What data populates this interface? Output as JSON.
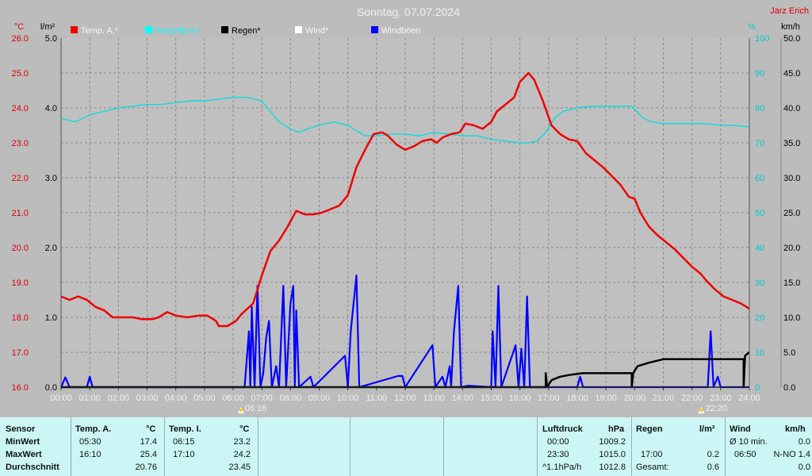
{
  "chart_data": {
    "type": "line",
    "title": "Sonntag, 07.07.2024",
    "corner_label": "Jarz Erich",
    "x_ticks": [
      "00:00",
      "01:00",
      "02:00",
      "03:00",
      "04:00",
      "05:00",
      "06:00",
      "07:00",
      "08:00",
      "09:00",
      "10:00",
      "11:00",
      "12:00",
      "13:00",
      "14:00",
      "15:00",
      "16:00",
      "17:00",
      "18:00",
      "19:00",
      "20:00",
      "21:00",
      "22:00",
      "23:00",
      "24:00"
    ],
    "axes": {
      "temp": {
        "unit": "°C",
        "range": [
          16.0,
          26.0
        ],
        "ticks": [
          "16.0",
          "17.0",
          "18.0",
          "19.0",
          "20.0",
          "21.0",
          "22.0",
          "23.0",
          "24.0",
          "25.0",
          "26.0"
        ],
        "color": "#dd0000"
      },
      "rain": {
        "unit": "l/m²",
        "range": [
          0.0,
          5.0
        ],
        "ticks": [
          "0.0",
          "1.0",
          "2.0",
          "3.0",
          "4.0",
          "5.0"
        ],
        "color": "#000000"
      },
      "humidity": {
        "unit": "%",
        "range": [
          0,
          100
        ],
        "ticks": [
          "0",
          "10",
          "20",
          "30",
          "40",
          "50",
          "60",
          "70",
          "80",
          "90",
          "100"
        ],
        "color": "#00cccc"
      },
      "wind": {
        "unit": "km/h",
        "range": [
          0.0,
          50.0
        ],
        "ticks": [
          "0.0",
          "5.0",
          "10.0",
          "15.0",
          "20.0",
          "25.0",
          "30.0",
          "35.0",
          "40.0",
          "45.0",
          "50.0"
        ],
        "color": "#000000"
      }
    },
    "legend": [
      {
        "name": "Temp. A.*",
        "color": "#ee0000"
      },
      {
        "name": "Feuchte A.*",
        "color": "#00ffff"
      },
      {
        "name": "Regen*",
        "color": "#000000"
      },
      {
        "name": "Wind*",
        "color": "#ffffff"
      },
      {
        "name": "Windböen",
        "color": "#0000ff"
      }
    ],
    "sun_markers": [
      {
        "label": "06:16",
        "x": 6.27
      },
      {
        "label": "22:20",
        "x": 22.33
      }
    ],
    "series": [
      {
        "name": "Temp. A.*",
        "axis": "temp",
        "color": "#ee0000",
        "points": [
          [
            0,
            18.6
          ],
          [
            0.3,
            18.5
          ],
          [
            0.6,
            18.6
          ],
          [
            0.9,
            18.5
          ],
          [
            1.2,
            18.3
          ],
          [
            1.5,
            18.2
          ],
          [
            1.8,
            18.0
          ],
          [
            2.2,
            18.0
          ],
          [
            2.5,
            18.0
          ],
          [
            2.8,
            17.95
          ],
          [
            3.2,
            17.95
          ],
          [
            3.4,
            18.0
          ],
          [
            3.7,
            18.15
          ],
          [
            4.0,
            18.05
          ],
          [
            4.4,
            18.0
          ],
          [
            4.8,
            18.05
          ],
          [
            5.1,
            18.05
          ],
          [
            5.4,
            17.9
          ],
          [
            5.5,
            17.75
          ],
          [
            5.8,
            17.75
          ],
          [
            6.1,
            17.9
          ],
          [
            6.3,
            18.1
          ],
          [
            6.7,
            18.4
          ],
          [
            7.0,
            19.2
          ],
          [
            7.3,
            19.9
          ],
          [
            7.6,
            20.2
          ],
          [
            7.9,
            20.6
          ],
          [
            8.2,
            21.05
          ],
          [
            8.5,
            20.95
          ],
          [
            8.8,
            20.95
          ],
          [
            9.1,
            21.0
          ],
          [
            9.4,
            21.1
          ],
          [
            9.7,
            21.2
          ],
          [
            10.0,
            21.5
          ],
          [
            10.3,
            22.3
          ],
          [
            10.6,
            22.8
          ],
          [
            10.9,
            23.25
          ],
          [
            11.2,
            23.3
          ],
          [
            11.4,
            23.2
          ],
          [
            11.7,
            22.95
          ],
          [
            12.0,
            22.8
          ],
          [
            12.3,
            22.9
          ],
          [
            12.6,
            23.05
          ],
          [
            12.9,
            23.1
          ],
          [
            13.1,
            23.0
          ],
          [
            13.3,
            23.15
          ],
          [
            13.6,
            23.25
          ],
          [
            13.9,
            23.3
          ],
          [
            14.1,
            23.55
          ],
          [
            14.4,
            23.5
          ],
          [
            14.7,
            23.4
          ],
          [
            15.0,
            23.6
          ],
          [
            15.2,
            23.9
          ],
          [
            15.5,
            24.1
          ],
          [
            15.8,
            24.3
          ],
          [
            16.0,
            24.75
          ],
          [
            16.3,
            25.0
          ],
          [
            16.5,
            24.8
          ],
          [
            16.8,
            24.2
          ],
          [
            17.1,
            23.5
          ],
          [
            17.4,
            23.25
          ],
          [
            17.7,
            23.1
          ],
          [
            18.0,
            23.05
          ],
          [
            18.3,
            22.7
          ],
          [
            18.6,
            22.5
          ],
          [
            18.9,
            22.3
          ],
          [
            19.2,
            22.05
          ],
          [
            19.5,
            21.8
          ],
          [
            19.8,
            21.45
          ],
          [
            20.0,
            21.4
          ],
          [
            20.2,
            21.0
          ],
          [
            20.5,
            20.6
          ],
          [
            20.8,
            20.35
          ],
          [
            21.1,
            20.15
          ],
          [
            21.4,
            19.95
          ],
          [
            21.7,
            19.7
          ],
          [
            22.0,
            19.45
          ],
          [
            22.3,
            19.25
          ],
          [
            22.5,
            19.05
          ],
          [
            22.8,
            18.8
          ],
          [
            23.1,
            18.6
          ],
          [
            23.4,
            18.5
          ],
          [
            23.7,
            18.4
          ],
          [
            24.0,
            18.25
          ]
        ]
      },
      {
        "name": "Feuchte A.*",
        "axis": "humidity",
        "color": "#00dddd",
        "points": [
          [
            0,
            77
          ],
          [
            0.5,
            76
          ],
          [
            1.0,
            78
          ],
          [
            1.5,
            79
          ],
          [
            2.0,
            80
          ],
          [
            2.5,
            80.5
          ],
          [
            3.0,
            81
          ],
          [
            3.5,
            81
          ],
          [
            4.0,
            81.5
          ],
          [
            4.5,
            82
          ],
          [
            5.0,
            82
          ],
          [
            5.5,
            82.5
          ],
          [
            6.0,
            83
          ],
          [
            6.5,
            83
          ],
          [
            7.0,
            82
          ],
          [
            7.3,
            79
          ],
          [
            7.6,
            76
          ],
          [
            8.0,
            74
          ],
          [
            8.3,
            73
          ],
          [
            8.6,
            74
          ],
          [
            9.0,
            75
          ],
          [
            9.5,
            76
          ],
          [
            10.0,
            75
          ],
          [
            10.3,
            73.5
          ],
          [
            10.6,
            72
          ],
          [
            11.0,
            72
          ],
          [
            11.5,
            72.5
          ],
          [
            12.0,
            72.5
          ],
          [
            12.5,
            72
          ],
          [
            13.0,
            73
          ],
          [
            13.5,
            72.5
          ],
          [
            14.0,
            72
          ],
          [
            14.5,
            72
          ],
          [
            15.0,
            71
          ],
          [
            15.5,
            70.5
          ],
          [
            16.0,
            70
          ],
          [
            16.3,
            70
          ],
          [
            16.6,
            70.5
          ],
          [
            16.9,
            73
          ],
          [
            17.2,
            77
          ],
          [
            17.5,
            79
          ],
          [
            18.0,
            80
          ],
          [
            18.5,
            80.5
          ],
          [
            19.0,
            80.5
          ],
          [
            19.5,
            80.5
          ],
          [
            19.9,
            80.5
          ],
          [
            20.3,
            77
          ],
          [
            20.6,
            76
          ],
          [
            21.0,
            75.5
          ],
          [
            21.5,
            75.5
          ],
          [
            22.0,
            75.5
          ],
          [
            22.5,
            75.5
          ],
          [
            23.0,
            75
          ],
          [
            23.5,
            75
          ],
          [
            24.0,
            74.5
          ]
        ]
      },
      {
        "name": "Regen*",
        "axis": "rain",
        "color": "#000000",
        "points": [
          [
            0,
            0
          ],
          [
            16.9,
            0
          ],
          [
            16.9,
            0.2
          ],
          [
            16.95,
            0
          ],
          [
            17.1,
            0.1
          ],
          [
            17.4,
            0.15
          ],
          [
            17.8,
            0.18
          ],
          [
            18.2,
            0.2
          ],
          [
            18.8,
            0.2
          ],
          [
            19.5,
            0.2
          ],
          [
            19.9,
            0.2
          ],
          [
            19.9,
            0
          ],
          [
            19.95,
            0.2
          ],
          [
            20.1,
            0.3
          ],
          [
            20.5,
            0.35
          ],
          [
            21.0,
            0.4
          ],
          [
            22.0,
            0.4
          ],
          [
            23.0,
            0.4
          ],
          [
            23.5,
            0.4
          ],
          [
            23.8,
            0.4
          ],
          [
            23.8,
            0
          ],
          [
            23.85,
            0.45
          ],
          [
            24.0,
            0.5
          ]
        ]
      },
      {
        "name": "Windböen",
        "axis": "wind",
        "color": "#0000ff",
        "points": [
          [
            0,
            0
          ],
          [
            0.15,
            1.4
          ],
          [
            0.3,
            0
          ],
          [
            0.9,
            0
          ],
          [
            1.0,
            1.5
          ],
          [
            1.1,
            0
          ],
          [
            6.4,
            0
          ],
          [
            6.55,
            8
          ],
          [
            6.6,
            0
          ],
          [
            6.65,
            11.5
          ],
          [
            6.75,
            0
          ],
          [
            6.85,
            14.5
          ],
          [
            6.95,
            0
          ],
          [
            7.05,
            2
          ],
          [
            7.15,
            7
          ],
          [
            7.25,
            9.5
          ],
          [
            7.35,
            0
          ],
          [
            7.5,
            3
          ],
          [
            7.6,
            0
          ],
          [
            7.75,
            14.5
          ],
          [
            7.85,
            0
          ],
          [
            8.0,
            12
          ],
          [
            8.1,
            14.5
          ],
          [
            8.15,
            0
          ],
          [
            8.2,
            11
          ],
          [
            8.3,
            0
          ],
          [
            8.7,
            1.5
          ],
          [
            8.8,
            0
          ],
          [
            9.9,
            4.5
          ],
          [
            10.0,
            0
          ],
          [
            10.1,
            8
          ],
          [
            10.3,
            16
          ],
          [
            10.4,
            0
          ],
          [
            11.75,
            1.6
          ],
          [
            11.9,
            1.6
          ],
          [
            12.0,
            0
          ],
          [
            12.95,
            6
          ],
          [
            13.05,
            0
          ],
          [
            13.3,
            1.5
          ],
          [
            13.4,
            0
          ],
          [
            13.55,
            3
          ],
          [
            13.6,
            0
          ],
          [
            13.7,
            8
          ],
          [
            13.85,
            14.5
          ],
          [
            13.95,
            0
          ],
          [
            14.2,
            0.2
          ],
          [
            15.0,
            0
          ],
          [
            15.05,
            8
          ],
          [
            15.15,
            0
          ],
          [
            15.25,
            14.5
          ],
          [
            15.35,
            0
          ],
          [
            15.85,
            6
          ],
          [
            15.95,
            0
          ],
          [
            16.05,
            5.5
          ],
          [
            16.15,
            0
          ],
          [
            16.25,
            13
          ],
          [
            16.35,
            0
          ],
          [
            18.0,
            0
          ],
          [
            18.1,
            1.5
          ],
          [
            18.2,
            0
          ],
          [
            22.55,
            0
          ],
          [
            22.65,
            8
          ],
          [
            22.75,
            0
          ],
          [
            22.9,
            1.5
          ],
          [
            23.0,
            0
          ],
          [
            24.0,
            0
          ]
        ]
      }
    ]
  },
  "table": {
    "sensor": {
      "header": "Sensor",
      "rows": [
        "MinWert",
        "MaxWert",
        "Durchschnitt"
      ]
    },
    "temp_a": {
      "header": "Temp. A.",
      "unit": "°C",
      "time": [
        "05:30",
        "16:10",
        ""
      ],
      "val": [
        "17.4",
        "25.4",
        "20.76"
      ]
    },
    "temp_i": {
      "header": "Temp. I.",
      "unit": "°C",
      "time": [
        "06:15",
        "17:10",
        ""
      ],
      "val": [
        "23.2",
        "24.2",
        "23.45"
      ]
    },
    "pressure": {
      "header": "Luftdruck",
      "unit": "hPa",
      "time": [
        "00:00",
        "23:30",
        "^1.1hPa/h"
      ],
      "val": [
        "1009.2",
        "1015.0",
        "1012.8"
      ]
    },
    "rain": {
      "header": "Regen",
      "unit": "l/m²",
      "time": [
        "",
        "17:00",
        "Gesamt:"
      ],
      "val": [
        "",
        "0.2",
        "0.6"
      ]
    },
    "wind": {
      "header": "Wind",
      "unit": "km/h",
      "time": [
        "Ø 10 min.",
        "06:50",
        ""
      ],
      "val": [
        "0.0",
        "N-NO 1.4",
        "0.0"
      ]
    }
  }
}
